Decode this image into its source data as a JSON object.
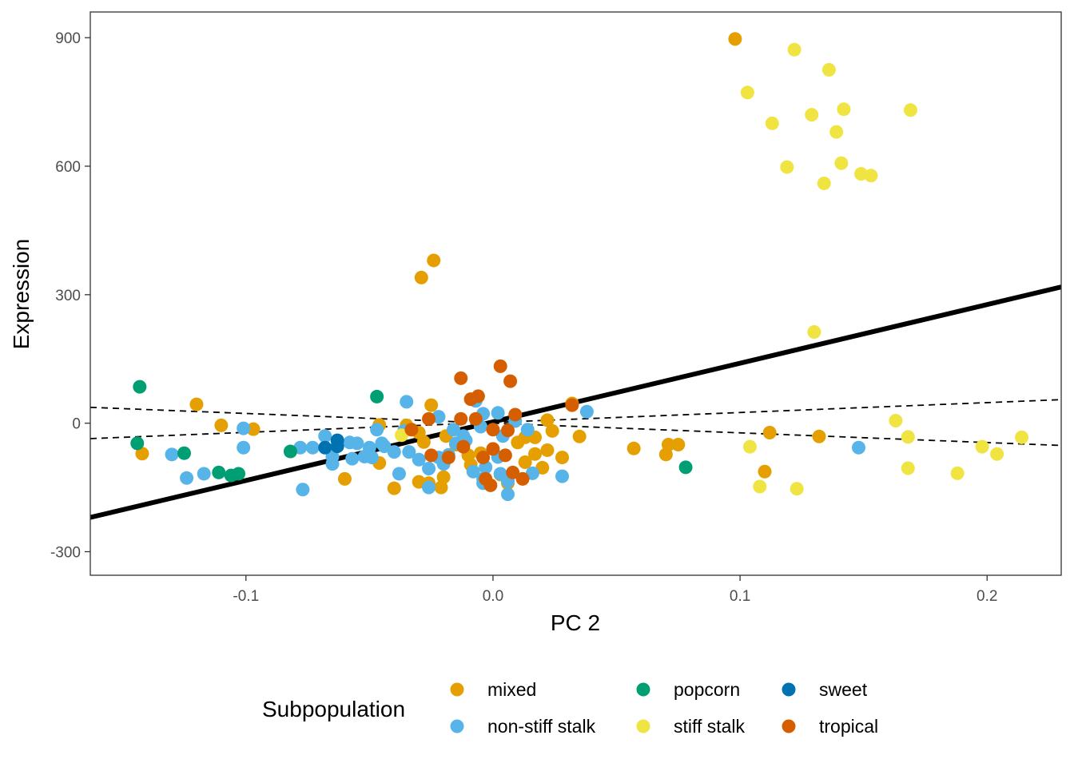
{
  "chart_data": {
    "type": "scatter",
    "xlabel": "PC 2",
    "ylabel": "Expression",
    "xlim": [
      -0.163,
      0.23
    ],
    "ylim": [
      -355,
      960
    ],
    "x_ticks": [
      -0.1,
      0.0,
      0.1,
      0.2
    ],
    "x_tick_labels": [
      "-0.1",
      "0.0",
      "0.1",
      "0.2"
    ],
    "y_ticks": [
      -300,
      0,
      300,
      600,
      900
    ],
    "y_tick_labels": [
      "-300",
      "0",
      "300",
      "600",
      "900"
    ],
    "grid": false,
    "legend": {
      "title": "Subpopulation",
      "position": "bottom",
      "entries": [
        {
          "name": "mixed",
          "color": "#E69F00"
        },
        {
          "name": "non-stiff stalk",
          "color": "#56B4E9"
        },
        {
          "name": "popcorn",
          "color": "#009E73"
        },
        {
          "name": "stiff stalk",
          "color": "#F0E442"
        },
        {
          "name": "sweet",
          "color": "#0072B2"
        },
        {
          "name": "tropical",
          "color": "#D55E00"
        }
      ]
    },
    "lines": [
      {
        "style": "solid",
        "color": "#000000",
        "points": [
          [
            -0.163,
            -220
          ],
          [
            0.23,
            318
          ]
        ]
      },
      {
        "style": "dashed",
        "color": "#000000",
        "points": [
          [
            -0.163,
            37
          ],
          [
            0.23,
            -52
          ]
        ]
      },
      {
        "style": "dashed",
        "color": "#000000",
        "points": [
          [
            -0.163,
            -36
          ],
          [
            0.23,
            55
          ]
        ]
      }
    ],
    "series": [
      {
        "name": "mixed",
        "color": "#E69F00",
        "points": [
          [
            0.098,
            897
          ],
          [
            -0.029,
            340
          ],
          [
            -0.024,
            380
          ],
          [
            -0.12,
            44
          ],
          [
            -0.142,
            -71
          ],
          [
            -0.11,
            -5
          ],
          [
            -0.097,
            -14
          ],
          [
            -0.06,
            -130
          ],
          [
            -0.046,
            -4
          ],
          [
            -0.046,
            -93
          ],
          [
            -0.04,
            -152
          ],
          [
            -0.035,
            -5
          ],
          [
            -0.03,
            -137
          ],
          [
            -0.026,
            -140
          ],
          [
            -0.021,
            -150
          ],
          [
            -0.02,
            -126
          ],
          [
            -0.025,
            42
          ],
          [
            -0.03,
            -22
          ],
          [
            -0.028,
            -44
          ],
          [
            -0.019,
            -30
          ],
          [
            -0.015,
            -50
          ],
          [
            -0.01,
            -75
          ],
          [
            0.01,
            -45
          ],
          [
            0.013,
            -33
          ],
          [
            0.017,
            -33
          ],
          [
            0.013,
            -91
          ],
          [
            0.017,
            -72
          ],
          [
            0.02,
            -104
          ],
          [
            0.022,
            -63
          ],
          [
            0.024,
            -18
          ],
          [
            0.022,
            7
          ],
          [
            0.028,
            -80
          ],
          [
            0.035,
            -31
          ],
          [
            0.032,
            46
          ],
          [
            0.003,
            -120
          ],
          [
            0.006,
            -140
          ],
          [
            -0.005,
            -70
          ],
          [
            -0.009,
            -97
          ],
          [
            0.057,
            -59
          ],
          [
            0.07,
            -73
          ],
          [
            0.071,
            -50
          ],
          [
            0.075,
            -50
          ],
          [
            0.11,
            -113
          ],
          [
            0.112,
            -22
          ],
          [
            0.132,
            -31
          ]
        ]
      },
      {
        "name": "non-stiff stalk",
        "color": "#56B4E9",
        "points": [
          [
            -0.13,
            -73
          ],
          [
            -0.124,
            -128
          ],
          [
            -0.117,
            -118
          ],
          [
            -0.101,
            -12
          ],
          [
            -0.101,
            -57
          ],
          [
            -0.078,
            -57
          ],
          [
            -0.077,
            -155
          ],
          [
            -0.073,
            -57
          ],
          [
            -0.068,
            -30
          ],
          [
            -0.065,
            -78
          ],
          [
            -0.065,
            -95
          ],
          [
            -0.057,
            -83
          ],
          [
            -0.055,
            -47
          ],
          [
            -0.052,
            -78
          ],
          [
            -0.05,
            -57
          ],
          [
            -0.049,
            -80
          ],
          [
            -0.047,
            -15
          ],
          [
            -0.045,
            -47
          ],
          [
            -0.04,
            -67
          ],
          [
            -0.038,
            -118
          ],
          [
            -0.035,
            50
          ],
          [
            -0.034,
            -67
          ],
          [
            -0.03,
            -85
          ],
          [
            -0.026,
            -150
          ],
          [
            -0.026,
            -106
          ],
          [
            -0.022,
            15
          ],
          [
            -0.022,
            -80
          ],
          [
            -0.02,
            -95
          ],
          [
            -0.018,
            -74
          ],
          [
            -0.015,
            -47
          ],
          [
            -0.012,
            -30
          ],
          [
            -0.008,
            -113
          ],
          [
            -0.007,
            52
          ],
          [
            -0.004,
            22
          ],
          [
            -0.004,
            -130
          ],
          [
            -0.004,
            -140
          ],
          [
            -0.003,
            -103
          ],
          [
            0.002,
            24
          ],
          [
            0.002,
            -79
          ],
          [
            0.003,
            -118
          ],
          [
            0.004,
            -30
          ],
          [
            0.006,
            -166
          ],
          [
            0.006,
            -135
          ],
          [
            0.009,
            5
          ],
          [
            0.014,
            -15
          ],
          [
            0.016,
            -117
          ],
          [
            0.028,
            -124
          ],
          [
            0.038,
            27
          ],
          [
            -0.016,
            -15
          ],
          [
            -0.005,
            -8
          ],
          [
            0.148,
            -57
          ],
          [
            -0.058,
            -45
          ],
          [
            -0.044,
            -54
          ],
          [
            -0.036,
            -18
          ],
          [
            -0.011,
            -40
          ]
        ]
      },
      {
        "name": "popcorn",
        "color": "#009E73",
        "points": [
          [
            -0.143,
            85
          ],
          [
            -0.144,
            -47
          ],
          [
            -0.125,
            -70
          ],
          [
            -0.111,
            -115
          ],
          [
            -0.106,
            -122
          ],
          [
            -0.103,
            -118
          ],
          [
            -0.082,
            -66
          ],
          [
            -0.047,
            62
          ],
          [
            0.078,
            -103
          ]
        ]
      },
      {
        "name": "stiff stalk",
        "color": "#F0E442",
        "points": [
          [
            0.122,
            872
          ],
          [
            0.136,
            825
          ],
          [
            0.103,
            772
          ],
          [
            0.142,
            733
          ],
          [
            0.169,
            731
          ],
          [
            0.113,
            700
          ],
          [
            0.129,
            720
          ],
          [
            0.139,
            680
          ],
          [
            0.141,
            607
          ],
          [
            0.149,
            582
          ],
          [
            0.153,
            578
          ],
          [
            0.119,
            598
          ],
          [
            0.134,
            560
          ],
          [
            0.13,
            213
          ],
          [
            0.163,
            6
          ],
          [
            0.168,
            -32
          ],
          [
            0.104,
            -55
          ],
          [
            0.108,
            -148
          ],
          [
            0.123,
            -153
          ],
          [
            0.168,
            -105
          ],
          [
            0.188,
            -117
          ],
          [
            0.198,
            -55
          ],
          [
            0.204,
            -72
          ],
          [
            0.214,
            -33
          ],
          [
            -0.037,
            -28
          ]
        ]
      },
      {
        "name": "sweet",
        "color": "#0072B2",
        "points": [
          [
            -0.063,
            -40
          ],
          [
            -0.063,
            -54
          ],
          [
            -0.068,
            -57
          ]
        ]
      },
      {
        "name": "tropical",
        "color": "#D55E00",
        "points": [
          [
            -0.013,
            105
          ],
          [
            0.003,
            133
          ],
          [
            0.007,
            98
          ],
          [
            -0.009,
            56
          ],
          [
            -0.006,
            63
          ],
          [
            -0.013,
            10
          ],
          [
            -0.007,
            10
          ],
          [
            0.009,
            20
          ],
          [
            -0.026,
            10
          ],
          [
            0.0,
            -15
          ],
          [
            -0.025,
            -75
          ],
          [
            -0.018,
            -80
          ],
          [
            -0.012,
            -55
          ],
          [
            -0.004,
            -80
          ],
          [
            0.0,
            -60
          ],
          [
            0.005,
            -75
          ],
          [
            0.008,
            -115
          ],
          [
            0.012,
            -130
          ],
          [
            -0.001,
            -145
          ],
          [
            -0.003,
            -130
          ],
          [
            0.032,
            42
          ],
          [
            0.006,
            -17
          ],
          [
            -0.033,
            -15
          ]
        ]
      }
    ]
  }
}
